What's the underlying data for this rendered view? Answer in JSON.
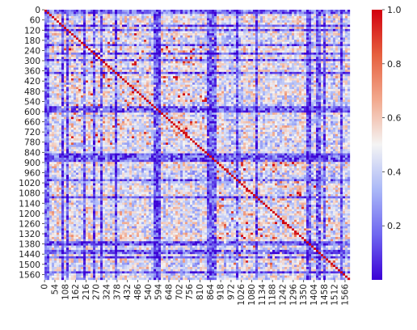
{
  "chart_data": {
    "type": "heatmap",
    "title": "",
    "xlabel": "",
    "ylabel": "",
    "n_rows": 1592,
    "n_cols": 1592,
    "value_range": [
      0.0,
      1.0
    ],
    "colormap": "coolwarm",
    "colormap_stops": [
      "#3b00d6",
      "#6f66f0",
      "#aab8f7",
      "#f4f4f4",
      "#f2a98e",
      "#e6603f",
      "#d2000e"
    ],
    "x_ticks": [
      "0",
      "54",
      "108",
      "162",
      "216",
      "270",
      "324",
      "378",
      "432",
      "486",
      "540",
      "594",
      "648",
      "702",
      "756",
      "810",
      "864",
      "918",
      "972",
      "1026",
      "1080",
      "1134",
      "1188",
      "1242",
      "1296",
      "1350",
      "1404",
      "1458",
      "1512",
      "1566"
    ],
    "y_ticks": [
      "0",
      "60",
      "120",
      "180",
      "240",
      "300",
      "360",
      "420",
      "480",
      "540",
      "600",
      "660",
      "720",
      "780",
      "840",
      "900",
      "960",
      "1020",
      "1080",
      "1140",
      "1200",
      "1260",
      "1320",
      "1380",
      "1440",
      "1500",
      "1560"
    ],
    "colorbar": {
      "ticks": [
        {
          "value": 0.2,
          "label": "0.2"
        },
        {
          "value": 0.4,
          "label": "0.4"
        },
        {
          "value": 0.6,
          "label": "0.6"
        },
        {
          "value": 0.8,
          "label": "0.8"
        },
        {
          "value": 1.0,
          "label": "1.0"
        }
      ],
      "min": 0.0,
      "max": 1.0
    },
    "description_of_values": "Dense pairwise similarity matrix; most cells low (0.0-0.4, blue), scattered higher-value blocks (0.5-0.8, light red) along diagonal region; strong low-value row/column bands near 870-890 and 1420-1440."
  }
}
